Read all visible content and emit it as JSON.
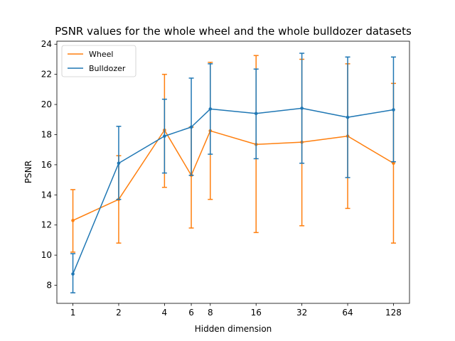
{
  "chart_data": {
    "type": "line",
    "title": "PSNR values for the whole wheel and the whole bulldozer datasets",
    "xlabel": "Hidden dimension",
    "ylabel": "PSNR",
    "x_scale": "log2",
    "x": [
      1,
      2,
      4,
      6,
      8,
      16,
      32,
      64,
      128
    ],
    "x_tick_labels": [
      "1",
      "2",
      "4",
      "6",
      "8",
      "16",
      "32",
      "64",
      "128"
    ],
    "ylim": [
      6.8,
      24.2
    ],
    "y_ticks": [
      8,
      10,
      12,
      14,
      16,
      18,
      20,
      22,
      24
    ],
    "grid": false,
    "legend_position": "upper left",
    "series": [
      {
        "name": "Wheel",
        "color": "#ff7f0e",
        "values": [
          12.3,
          13.7,
          18.3,
          15.3,
          18.25,
          17.35,
          17.5,
          17.9,
          16.1
        ],
        "err_low": [
          10.2,
          10.8,
          14.5,
          11.8,
          13.7,
          11.5,
          11.95,
          13.1,
          10.8
        ],
        "err_high": [
          14.35,
          16.6,
          22.0,
          18.5,
          22.8,
          23.25,
          23.0,
          22.7,
          21.4
        ]
      },
      {
        "name": "Bulldozer",
        "color": "#1f77b4",
        "values": [
          8.75,
          16.1,
          17.9,
          18.5,
          19.7,
          19.4,
          19.75,
          19.15,
          19.65
        ],
        "err_low": [
          7.5,
          13.7,
          15.45,
          15.3,
          16.7,
          16.4,
          16.1,
          15.15,
          16.2
        ],
        "err_high": [
          10.1,
          18.55,
          20.35,
          21.75,
          22.7,
          22.35,
          23.4,
          23.15,
          23.15
        ]
      }
    ]
  }
}
